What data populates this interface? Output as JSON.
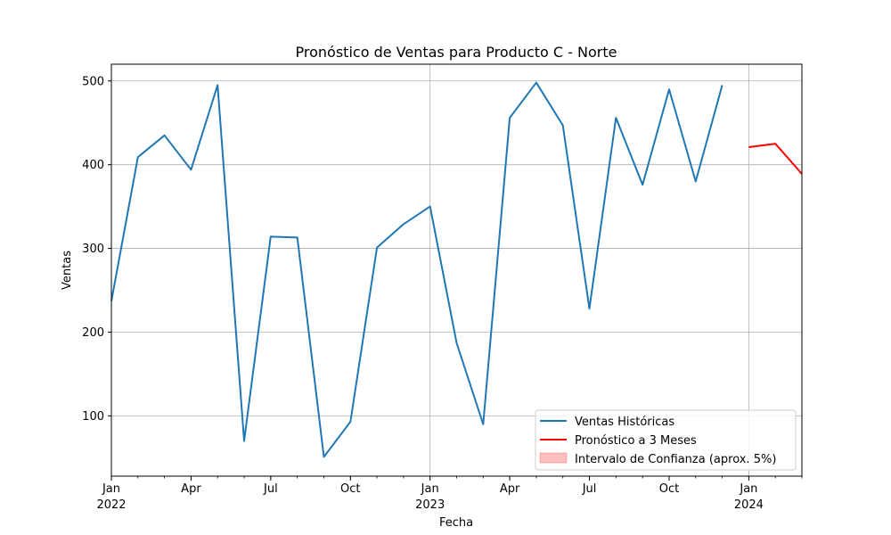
{
  "chart_data": {
    "type": "line",
    "title": "Pronóstico de Ventas para Producto C - Norte",
    "xlabel": "Fecha",
    "ylabel": "Ventas",
    "xlim": [
      "2022-01",
      "2024-03"
    ],
    "ylim": [
      28,
      520
    ],
    "grid": true,
    "legend_position": "lower-right",
    "y_ticks": [
      100,
      200,
      300,
      400,
      500
    ],
    "x_ticks": [
      {
        "date": "2022-01",
        "label": "Jan",
        "year": "2022"
      },
      {
        "date": "2022-04",
        "label": "Apr",
        "year": ""
      },
      {
        "date": "2022-07",
        "label": "Jul",
        "year": ""
      },
      {
        "date": "2022-10",
        "label": "Oct",
        "year": ""
      },
      {
        "date": "2023-01",
        "label": "Jan",
        "year": "2023"
      },
      {
        "date": "2023-04",
        "label": "Apr",
        "year": ""
      },
      {
        "date": "2023-07",
        "label": "Jul",
        "year": ""
      },
      {
        "date": "2023-10",
        "label": "Oct",
        "year": ""
      },
      {
        "date": "2024-01",
        "label": "Jan",
        "year": "2024"
      }
    ],
    "series": [
      {
        "name": "Ventas Históricas",
        "color": "#1f77b4",
        "x": [
          "2022-01",
          "2022-02",
          "2022-03",
          "2022-04",
          "2022-05",
          "2022-06",
          "2022-07",
          "2022-08",
          "2022-09",
          "2022-10",
          "2022-11",
          "2022-12",
          "2023-01",
          "2023-02",
          "2023-03",
          "2023-04",
          "2023-05",
          "2023-06",
          "2023-07",
          "2023-08",
          "2023-09",
          "2023-10",
          "2023-11",
          "2023-12"
        ],
        "y": [
          237,
          409,
          435,
          394,
          495,
          70,
          314,
          313,
          51,
          93,
          301,
          329,
          350,
          187,
          90,
          456,
          498,
          447,
          228,
          456,
          376,
          490,
          380,
          495
        ]
      },
      {
        "name": "Pronóstico a 3 Meses",
        "color": "#ff0000",
        "x": [
          "2024-01",
          "2024-02",
          "2024-03"
        ],
        "y": [
          421,
          425,
          389
        ]
      }
    ],
    "band": {
      "name": "Intervalo de Confianza (aprox. 5%)",
      "color": "#ff0000",
      "opacity": 0.25
    }
  }
}
